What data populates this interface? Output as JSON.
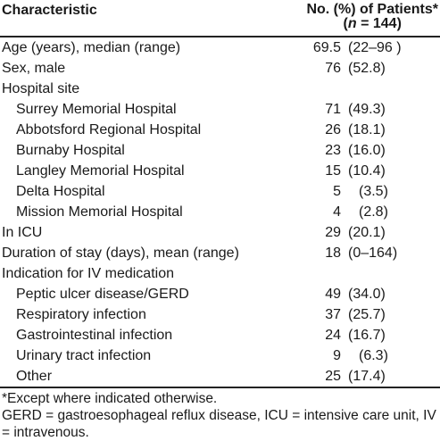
{
  "header": {
    "characteristic_label": "Characteristic",
    "count_label_line1": "No. (%) of Patients*",
    "count_label_open": "(",
    "count_label_n": "n",
    "count_label_rest": " = 144)"
  },
  "rows": [
    {
      "label": "Age (years), median (range)",
      "num": "69.5",
      "pct": "(22–96 )",
      "indent": false
    },
    {
      "label": "Sex, male",
      "num": "76",
      "pct": "(52.8)",
      "indent": false
    },
    {
      "label": "Hospital site",
      "num": "",
      "pct": "",
      "indent": false
    },
    {
      "label": "Surrey Memorial Hospital",
      "num": "71",
      "pct": "(49.3)",
      "indent": true
    },
    {
      "label": "Abbotsford Regional Hospital",
      "num": "26",
      "pct": "(18.1)",
      "indent": true
    },
    {
      "label": "Burnaby Hospital",
      "num": "23",
      "pct": "(16.0)",
      "indent": true
    },
    {
      "label": "Langley Memorial Hospital",
      "num": "15",
      "pct": "(10.4)",
      "indent": true
    },
    {
      "label": "Delta Hospital",
      "num": "5",
      "pct": "(3.5)",
      "indent": true
    },
    {
      "label": "Mission Memorial Hospital",
      "num": "4",
      "pct": "(2.8)",
      "indent": true
    },
    {
      "label": "In ICU",
      "num": "29",
      "pct": "(20.1)",
      "indent": false
    },
    {
      "label": "Duration of stay (days), mean (range)",
      "num": "18",
      "pct": "(0–164)",
      "indent": false
    },
    {
      "label": "Indication for IV medication",
      "num": "",
      "pct": "",
      "indent": false
    },
    {
      "label": "Peptic ulcer disease/GERD",
      "num": "49",
      "pct": "(34.0)",
      "indent": true
    },
    {
      "label": "Respiratory infection",
      "num": "37",
      "pct": "(25.7)",
      "indent": true
    },
    {
      "label": "Gastrointestinal infection",
      "num": "24",
      "pct": "(16.7)",
      "indent": true
    },
    {
      "label": "Urinary tract infection",
      "num": "9",
      "pct": "(6.3)",
      "indent": true
    },
    {
      "label": "Other",
      "num": "25",
      "pct": "(17.4)",
      "indent": true
    }
  ],
  "footnotes": {
    "line1": "*Except where indicated otherwise.",
    "line2": "GERD = gastroesophageal reflux disease, ICU = intensive care unit, IV = intravenous."
  }
}
